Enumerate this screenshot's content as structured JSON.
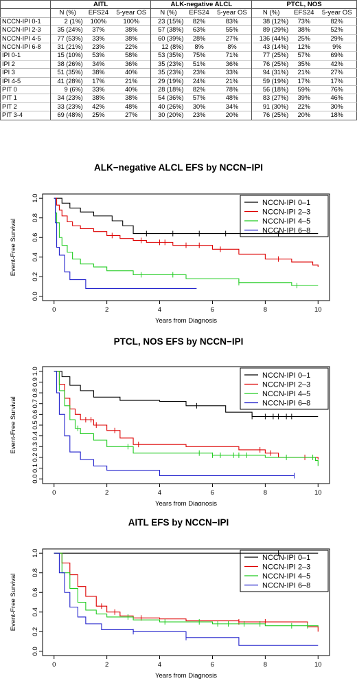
{
  "table": {
    "groups": [
      "AITL",
      "ALK-negative ALCL",
      "PTCL, NOS"
    ],
    "subheaders": [
      "N (%)",
      "EFS24",
      "5-year OS"
    ],
    "rows": [
      {
        "label": "NCCN-IPI 0-1",
        "cells": [
          "2 (1%)",
          "100%",
          "100%",
          "23 (15%)",
          "82%",
          "83%",
          "38 (12%)",
          "73%",
          "82%"
        ]
      },
      {
        "label": "NCCN-IPI 2-3",
        "cells": [
          "35 (24%)",
          "37%",
          "38%",
          "57 (38%)",
          "63%",
          "55%",
          "89 (29%)",
          "38%",
          "52%"
        ]
      },
      {
        "label": "NCCN-IPI 4-5",
        "cells": [
          "77 (53%)",
          "33%",
          "38%",
          "60 (39%)",
          "28%",
          "27%",
          "136 (44%)",
          "25%",
          "29%"
        ]
      },
      {
        "label": "NCCN-IPI 6-8",
        "cells": [
          "31 (21%)",
          "23%",
          "22%",
          "12 (8%)",
          "8%",
          "8%",
          "43 (14%)",
          "12%",
          "9%"
        ]
      },
      {
        "label": "IPI 0-1",
        "cells": [
          "15 (10%)",
          "53%",
          "58%",
          "53 (35%)",
          "75%",
          "71%",
          "77 (25%)",
          "57%",
          "69%"
        ]
      },
      {
        "label": "IPI 2",
        "cells": [
          "38 (26%)",
          "34%",
          "36%",
          "35 (23%)",
          "51%",
          "36%",
          "76 (25%)",
          "35%",
          "42%"
        ]
      },
      {
        "label": "IPI 3",
        "cells": [
          "51 (35%)",
          "38%",
          "40%",
          "35 (23%)",
          "23%",
          "33%",
          "94 (31%)",
          "21%",
          "27%"
        ]
      },
      {
        "label": "IPI 4-5",
        "cells": [
          "41 (28%)",
          "17%",
          "21%",
          "29 (19%)",
          "24%",
          "21%",
          "59 (19%)",
          "17%",
          "17%"
        ]
      },
      {
        "label": "PIT 0",
        "cells": [
          "9 (6%)",
          "33%",
          "40%",
          "28 (18%)",
          "82%",
          "78%",
          "56 (18%)",
          "59%",
          "76%"
        ]
      },
      {
        "label": "PIT 1",
        "cells": [
          "34 (23%)",
          "38%",
          "38%",
          "54 (36%)",
          "57%",
          "48%",
          "83 (27%)",
          "39%",
          "46%"
        ]
      },
      {
        "label": "PIT 2",
        "cells": [
          "33 (23%)",
          "42%",
          "48%",
          "40 (26%)",
          "30%",
          "34%",
          "91 (30%)",
          "22%",
          "30%"
        ]
      },
      {
        "label": "PIT 3-4",
        "cells": [
          "69 (48%)",
          "25%",
          "27%",
          "30 (20%)",
          "23%",
          "20%",
          "76 (25%)",
          "20%",
          "18%"
        ]
      }
    ]
  },
  "chart_data": [
    {
      "type": "line",
      "title": "ALK−negative ALCL EFS by NCCN−IPI",
      "xlabel": "Years from Diagnosis",
      "ylabel": "Event-Free Survival",
      "xlim": [
        0,
        10
      ],
      "ylim": [
        0,
        1
      ],
      "xticks": [
        "0",
        "2",
        "4",
        "6",
        "8",
        "10"
      ],
      "yticks": [
        "0.0",
        "0.2",
        "0.4",
        "0.6",
        "0.8",
        "1.0"
      ],
      "legend_position": "top-right",
      "series": [
        {
          "name": "NCCN-IPI 0–1",
          "color": "#000000",
          "x": [
            0,
            0.3,
            0.6,
            1.0,
            1.5,
            2.2,
            2.6,
            3.0,
            10
          ],
          "y": [
            1,
            0.95,
            0.9,
            0.86,
            0.82,
            0.77,
            0.72,
            0.64,
            0.64
          ],
          "censor_x": [
            3.5,
            4.5,
            5.5,
            6.5,
            8.5
          ]
        },
        {
          "name": "NCCN-IPI 2–3",
          "color": "#dd0000",
          "x": [
            0,
            0.1,
            0.2,
            0.3,
            0.5,
            0.7,
            1.0,
            1.5,
            2.0,
            2.5,
            3.0,
            3.5,
            4.5,
            6.0,
            7.0,
            8.0,
            9.0,
            9.8,
            10
          ],
          "y": [
            1,
            0.93,
            0.88,
            0.82,
            0.76,
            0.72,
            0.69,
            0.66,
            0.62,
            0.59,
            0.57,
            0.55,
            0.52,
            0.48,
            0.43,
            0.38,
            0.35,
            0.32,
            0.3
          ],
          "censor_x": [
            2.2,
            3.3,
            4.0,
            4.2,
            5.0,
            5.5,
            6.3,
            8.5
          ]
        },
        {
          "name": "NCCN-IPI 4–5",
          "color": "#22cc22",
          "x": [
            0,
            0.05,
            0.1,
            0.2,
            0.3,
            0.5,
            0.7,
            1.0,
            1.5,
            2.0,
            3.0,
            5.0,
            7.0,
            9.0,
            10
          ],
          "y": [
            1,
            0.85,
            0.75,
            0.6,
            0.52,
            0.45,
            0.38,
            0.33,
            0.3,
            0.26,
            0.22,
            0.18,
            0.14,
            0.11,
            0.11
          ],
          "censor_x": [
            3.3,
            4.5,
            7.0,
            9.2
          ]
        },
        {
          "name": "NCCN-IPI 6–8",
          "color": "#2222cc",
          "x": [
            0,
            0.05,
            0.1,
            0.2,
            0.4,
            0.6,
            1.2,
            5.4
          ],
          "y": [
            1,
            0.75,
            0.5,
            0.42,
            0.25,
            0.17,
            0.08,
            0.08
          ],
          "censor_x": []
        }
      ]
    },
    {
      "type": "line",
      "title": "PTCL, NOS EFS by NCCN−IPI",
      "xlabel": "Years from Diagnosis",
      "ylabel": "Event-Free Survival",
      "xlim": [
        0,
        10
      ],
      "ylim": [
        0,
        1
      ],
      "xticks": [
        "0",
        "2",
        "4",
        "6",
        "8",
        "10"
      ],
      "yticks": [
        "0.0",
        "0.1",
        "0.2",
        "0.3",
        "0.4",
        "0.5",
        "0.6",
        "0.7",
        "0.8",
        "0.9",
        "1.0"
      ],
      "legend_position": "top-right",
      "series": [
        {
          "name": "NCCN-IPI 0–1",
          "color": "#000000",
          "x": [
            0,
            0.3,
            0.6,
            1.0,
            1.5,
            2.5,
            4.0,
            5.0,
            6.5,
            7.5,
            10
          ],
          "y": [
            1,
            0.95,
            0.87,
            0.82,
            0.76,
            0.73,
            0.72,
            0.68,
            0.62,
            0.58,
            0.58
          ],
          "censor_x": [
            5.4,
            7.5,
            8.0,
            8.3,
            8.5,
            8.8,
            9.0
          ]
        },
        {
          "name": "NCCN-IPI 2–3",
          "color": "#dd0000",
          "x": [
            0,
            0.2,
            0.4,
            0.6,
            0.8,
            1.0,
            1.5,
            2.0,
            2.5,
            3.0,
            5.0,
            7.0,
            8.0,
            8.5,
            10
          ],
          "y": [
            1,
            0.88,
            0.75,
            0.65,
            0.6,
            0.55,
            0.5,
            0.45,
            0.38,
            0.32,
            0.3,
            0.27,
            0.24,
            0.2,
            0.18
          ],
          "censor_x": [
            1.2,
            1.4,
            1.6,
            2.3,
            3.2,
            7.8,
            8.2,
            9.5
          ]
        },
        {
          "name": "NCCN-IPI 4–5",
          "color": "#22cc22",
          "x": [
            0,
            0.2,
            0.4,
            0.6,
            0.8,
            1.0,
            1.5,
            2.0,
            3.0,
            6.0,
            8.0,
            9.9,
            10
          ],
          "y": [
            1,
            0.82,
            0.68,
            0.55,
            0.47,
            0.42,
            0.36,
            0.3,
            0.24,
            0.22,
            0.2,
            0.17,
            0.12
          ],
          "censor_x": [
            0.9,
            2.8,
            5.5,
            6.0,
            6.3,
            6.8,
            7.0,
            7.3,
            8.8,
            9.8
          ]
        },
        {
          "name": "NCCN-IPI 6–8",
          "color": "#2222cc",
          "x": [
            0,
            0.1,
            0.2,
            0.4,
            0.6,
            1.0,
            1.5,
            2.0,
            4.0,
            9.1
          ],
          "y": [
            1,
            0.8,
            0.6,
            0.4,
            0.25,
            0.18,
            0.12,
            0.08,
            0.03,
            0.03
          ],
          "censor_x": [
            9.1
          ]
        }
      ]
    },
    {
      "type": "line",
      "title": "AITL EFS by NCCN−IPI",
      "xlabel": "Years from Diagnosis",
      "ylabel": "Event-Free Survival",
      "xlim": [
        0,
        10
      ],
      "ylim": [
        0,
        1
      ],
      "xticks": [
        "0",
        "2",
        "4",
        "6",
        "8",
        "10"
      ],
      "yticks": [
        "0.0",
        "0.2",
        "0.4",
        "0.6",
        "0.8",
        "1.0"
      ],
      "legend_position": "top-right",
      "series": [
        {
          "name": "NCCN-IPI 0–1",
          "color": "#000000",
          "x": [
            0,
            10
          ],
          "y": [
            1,
            1
          ],
          "censor_x": [
            8.5
          ]
        },
        {
          "name": "NCCN-IPI 2–3",
          "color": "#dd0000",
          "x": [
            0,
            0.3,
            0.6,
            0.9,
            1.2,
            1.6,
            2.0,
            2.5,
            3.0,
            4.0,
            5.0,
            7.0,
            9.6,
            10
          ],
          "y": [
            1,
            0.9,
            0.78,
            0.66,
            0.56,
            0.46,
            0.4,
            0.36,
            0.34,
            0.33,
            0.31,
            0.3,
            0.25,
            0.2
          ],
          "censor_x": [
            1.8,
            2.3,
            3.3,
            7.0,
            8.0
          ]
        },
        {
          "name": "NCCN-IPI 4–5",
          "color": "#22cc22",
          "x": [
            0,
            0.3,
            0.6,
            0.9,
            1.2,
            1.6,
            2.0,
            3.0,
            4.0,
            6.0,
            8.0,
            10
          ],
          "y": [
            1,
            0.8,
            0.64,
            0.5,
            0.42,
            0.38,
            0.35,
            0.32,
            0.3,
            0.28,
            0.26,
            0.25
          ],
          "censor_x": [
            2.8,
            4.2,
            5.5,
            6.2,
            6.6,
            7.2,
            7.8,
            9.0,
            9.6
          ]
        },
        {
          "name": "NCCN-IPI 6–8",
          "color": "#2222cc",
          "x": [
            0,
            0.2,
            0.4,
            0.6,
            0.9,
            1.2,
            1.8,
            3.0,
            5.0,
            7.0,
            10
          ],
          "y": [
            1,
            0.8,
            0.6,
            0.45,
            0.35,
            0.28,
            0.22,
            0.2,
            0.14,
            0.06,
            0.06
          ],
          "censor_x": [
            3.0,
            5.0
          ]
        }
      ]
    }
  ]
}
